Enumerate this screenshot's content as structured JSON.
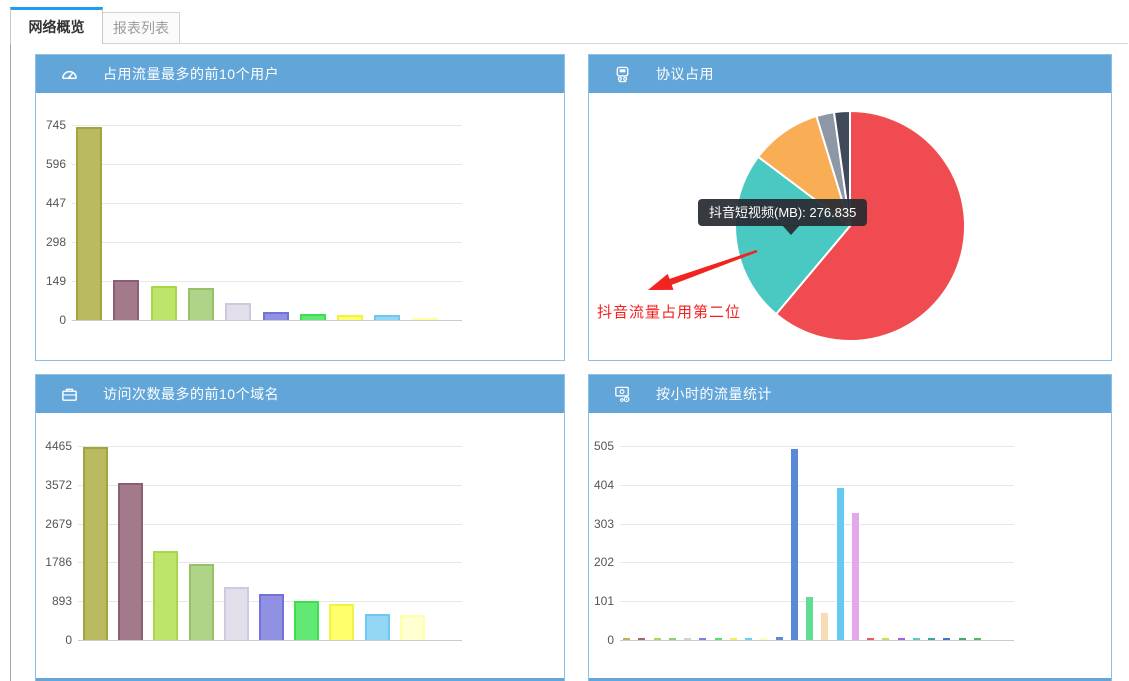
{
  "tabs": {
    "overview": "网络概览",
    "reports": "报表列表"
  },
  "panels": {
    "users": {
      "title": "占用流量最多的前10个用户",
      "icon": "gauge-icon"
    },
    "protocol": {
      "title": "协议占用",
      "icon": "protocol-icon"
    },
    "domains": {
      "title": "访问次数最多的前10个域名",
      "icon": "briefcase-icon"
    },
    "hourly": {
      "title": "按小时的流量统计",
      "icon": "monitor-gear-icon"
    }
  },
  "protocol_overlay": {
    "tooltip_text": "抖音短视频(MB): 276.835",
    "annotation_text": "抖音流量占用第二位"
  },
  "colors": {
    "header_bg": "#61a5d9",
    "panel_border": "#88c0ea",
    "tab_accent": "#1c9ff0",
    "annotation_red": "#f2241f",
    "tooltip_bg": "#282b32"
  },
  "chart_data": [
    {
      "id": "users",
      "type": "bar",
      "title": "占用流量最多的前10个用户",
      "yticks": [
        0,
        149,
        298,
        447,
        596,
        745
      ],
      "ylim": [
        0,
        745
      ],
      "x_labels_visible": false,
      "grid": true,
      "values": [
        738,
        152,
        128,
        124,
        65,
        31,
        23,
        21,
        19,
        5
      ],
      "bar_fills": [
        "#babb60",
        "#a27a8c",
        "#bfe46a",
        "#afd389",
        "#e2dfeb",
        "#9191e4",
        "#62e973",
        "#ffff6b",
        "#93d7f5",
        "#ffffd0"
      ],
      "bar_strokes": [
        "#a3a440",
        "#8b5e74",
        "#a8d748",
        "#97c167",
        "#cdc9de",
        "#7272d8",
        "#3ede53",
        "#f2f246",
        "#6fc8f0",
        "#ffffa8"
      ]
    },
    {
      "id": "protocol",
      "type": "pie",
      "title": "协议占用",
      "legend_visible": false,
      "slices": [
        {
          "name": "",
          "sweep_deg": 220,
          "percent": 61.1,
          "color": "#f04b50"
        },
        {
          "name": "抖音短视频",
          "sweep_deg": 87,
          "percent": 24.2,
          "value_mb": 276.835,
          "color": "#4ac8c2"
        },
        {
          "name": "",
          "sweep_deg": 36,
          "percent": 10.0,
          "color": "#f9ad55"
        },
        {
          "name": "",
          "sweep_deg": 9,
          "percent": 2.5,
          "color": "#8d97a6"
        },
        {
          "name": "",
          "sweep_deg": 8,
          "percent": 2.2,
          "color": "#414a5a"
        }
      ],
      "tooltip": "抖音短视频(MB): 276.835",
      "annotation": "抖音流量占用第二位"
    },
    {
      "id": "domains",
      "type": "bar",
      "title": "访问次数最多的前10个域名",
      "yticks": [
        0,
        893,
        1786,
        2679,
        3572,
        4465
      ],
      "ylim": [
        0,
        4465
      ],
      "x_labels_visible": false,
      "grid": true,
      "values": [
        4450,
        3620,
        2050,
        1750,
        1220,
        1070,
        897,
        828,
        587,
        564
      ],
      "bar_fills": [
        "#babb60",
        "#a27a8c",
        "#bfe46a",
        "#afd389",
        "#e2dfeb",
        "#9191e4",
        "#62e973",
        "#ffff6b",
        "#93d7f5",
        "#ffffd0"
      ],
      "bar_strokes": [
        "#a3a440",
        "#8b5e74",
        "#a8d748",
        "#97c167",
        "#cdc9de",
        "#7272d8",
        "#3ede53",
        "#f2f246",
        "#6fc8f0",
        "#ffffa8"
      ]
    },
    {
      "id": "hourly",
      "type": "bar",
      "title": "按小时的流量统计",
      "yticks": [
        0,
        101,
        202,
        303,
        404,
        505
      ],
      "ylim": [
        0,
        505
      ],
      "x_labels_visible": false,
      "grid": true,
      "values": [
        3,
        3,
        3,
        3,
        3,
        3,
        3,
        3,
        3,
        3,
        8,
        497,
        112,
        70,
        395,
        330,
        5,
        5,
        6,
        5,
        5,
        5,
        5,
        4
      ],
      "bar_fills": [
        "#b6b75c",
        "#a26568",
        "#abd94f",
        "#90cd72",
        "#d2d2da",
        "#7781e2",
        "#57de68",
        "#f0f057",
        "#69d0ee",
        "#ffffb2",
        "#5c8cd2",
        "#5a88d8",
        "#60dc95",
        "#f7ddb5",
        "#65caf2",
        "#e4a7ec",
        "#ee5a5a",
        "#bce455",
        "#a55ce8",
        "#5bccc0",
        "#38a89a",
        "#3c79c9",
        "#3cab6c",
        "#54b95c"
      ]
    }
  ]
}
